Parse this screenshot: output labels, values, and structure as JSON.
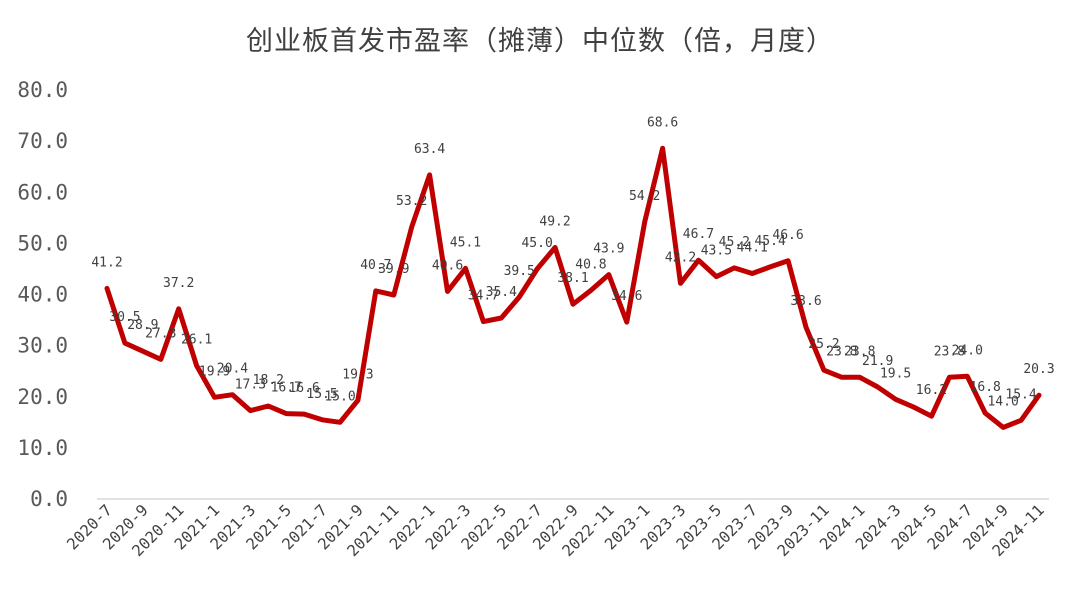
{
  "chart_data": {
    "type": "line",
    "title": "创业板首发市盈率（摊薄）中位数（倍，月度）",
    "xlabel": "",
    "ylabel": "",
    "ylim": [
      0,
      80
    ],
    "y_ticks": [
      "0.0",
      "10.0",
      "20.0",
      "30.0",
      "40.0",
      "50.0",
      "60.0",
      "70.0",
      "80.0"
    ],
    "grid": false,
    "legend": "none",
    "x": [
      "2020-7",
      "2020-8",
      "2020-9",
      "2020-10",
      "2020-11",
      "2020-12",
      "2021-1",
      "2021-2",
      "2021-3",
      "2021-4",
      "2021-5",
      "2021-6",
      "2021-7",
      "2021-8",
      "2021-9",
      "2021-10",
      "2021-11",
      "2021-12",
      "2022-1",
      "2022-2",
      "2022-3",
      "2022-4",
      "2022-5",
      "2022-6",
      "2022-7",
      "2022-8",
      "2022-9",
      "2022-10",
      "2022-11",
      "2022-12",
      "2023-1",
      "2023-2",
      "2023-3",
      "2023-4",
      "2023-5",
      "2023-6",
      "2023-7",
      "2023-8",
      "2023-9",
      "2023-10",
      "2023-11",
      "2023-12",
      "2024-1",
      "2024-2",
      "2024-3",
      "2024-4",
      "2024-5",
      "2024-6",
      "2024-7",
      "2024-8",
      "2024-9",
      "2024-10",
      "2024-11"
    ],
    "x_tick_labels": [
      "2020-7",
      "2020-9",
      "2020-11",
      "2021-1",
      "2021-3",
      "2021-5",
      "2021-7",
      "2021-9",
      "2021-11",
      "2022-1",
      "2022-3",
      "2022-5",
      "2022-7",
      "2022-9",
      "2022-11",
      "2023-1",
      "2023-3",
      "2023-5",
      "2023-7",
      "2023-9",
      "2023-11",
      "2024-1",
      "2024-3",
      "2024-5",
      "2024-7",
      "2024-9",
      "2024-11"
    ],
    "series": [
      {
        "color": "#c00000",
        "values": [
          41.2,
          30.5,
          28.9,
          27.3,
          37.2,
          26.1,
          19.9,
          20.4,
          17.3,
          18.2,
          16.7,
          16.6,
          15.5,
          15.0,
          19.3,
          40.7,
          39.9,
          53.2,
          63.4,
          40.6,
          45.1,
          34.7,
          35.4,
          39.5,
          45.0,
          49.2,
          38.1,
          40.8,
          43.9,
          34.6,
          54.2,
          68.6,
          42.2,
          46.7,
          43.5,
          45.2,
          44.1,
          45.4,
          46.6,
          33.6,
          25.2,
          23.8,
          23.8,
          21.9,
          19.5,
          18.0,
          16.2,
          23.8,
          24.0,
          16.8,
          14.0,
          15.4,
          20.3
        ],
        "labels": [
          "41.2",
          "30.5",
          "28.9",
          "27.3",
          "37.2",
          "26.1",
          "19.9",
          "20.4",
          "17.3",
          "18.2",
          "16.7",
          "16.6",
          "15.5",
          "15.0",
          "19.3",
          "40.7",
          "39.9",
          "53.2",
          "63.4",
          "40.6",
          "45.1",
          "34.7",
          "35.4",
          "39.5",
          "45.0",
          "49.2",
          "38.1",
          "40.8",
          "43.9",
          "34.6",
          "54.2",
          "68.6",
          "42.2",
          "46.7",
          "43.5",
          "45.2",
          "44.1",
          "45.4",
          "46.6",
          "33.6",
          "25.2",
          "23.8",
          "23.8",
          "21.9",
          "19.5",
          "",
          "16.2",
          "23.8",
          "24.0",
          "16.8",
          "14.0",
          "15.4",
          "20.3"
        ]
      }
    ]
  }
}
